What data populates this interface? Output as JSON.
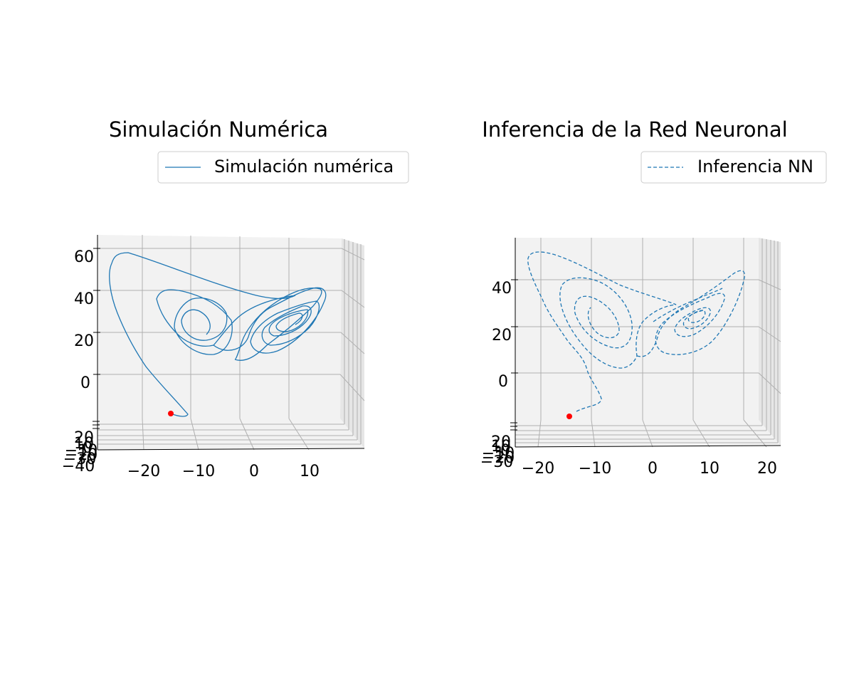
{
  "figure": {
    "red_marker_color": "#ff0000",
    "series_color": "#1f77b4"
  },
  "chart_data": [
    {
      "type": "line",
      "projection": "3d",
      "title": "Simulación Numérica",
      "legend": {
        "entries": [
          "Simulación numérica"
        ],
        "placement": "top-right",
        "line_style": "solid"
      },
      "series": [
        {
          "name": "Simulación numérica",
          "style": "solid",
          "attractor": "Lorenz"
        }
      ],
      "marker": {
        "label": "start point",
        "color": "#ff0000"
      },
      "axes": {
        "x": {
          "ticks": [
            "−20",
            "−10",
            "0",
            "10"
          ]
        },
        "z": {
          "ticks": [
            "0",
            "20",
            "40",
            "60"
          ]
        },
        "y": {
          "ticks": [
            "20",
            "10",
            "0",
            "−10",
            "−20",
            "−30",
            "−40"
          ]
        }
      },
      "grid": true
    },
    {
      "type": "line",
      "projection": "3d",
      "title": "Inferencia de la Red Neuronal",
      "legend": {
        "entries": [
          "Inferencia NN"
        ],
        "placement": "top-right",
        "line_style": "dashed"
      },
      "series": [
        {
          "name": "Inferencia NN",
          "style": "dashed",
          "attractor": "Lorenz"
        }
      ],
      "marker": {
        "label": "start point",
        "color": "#ff0000"
      },
      "axes": {
        "x": {
          "ticks": [
            "−20",
            "−10",
            "0",
            "10",
            "20"
          ]
        },
        "z": {
          "ticks": [
            "0",
            "20",
            "40"
          ]
        },
        "y": {
          "ticks": [
            "20",
            "10",
            "0",
            "−10",
            "−20",
            "−30"
          ]
        }
      },
      "grid": true
    }
  ]
}
